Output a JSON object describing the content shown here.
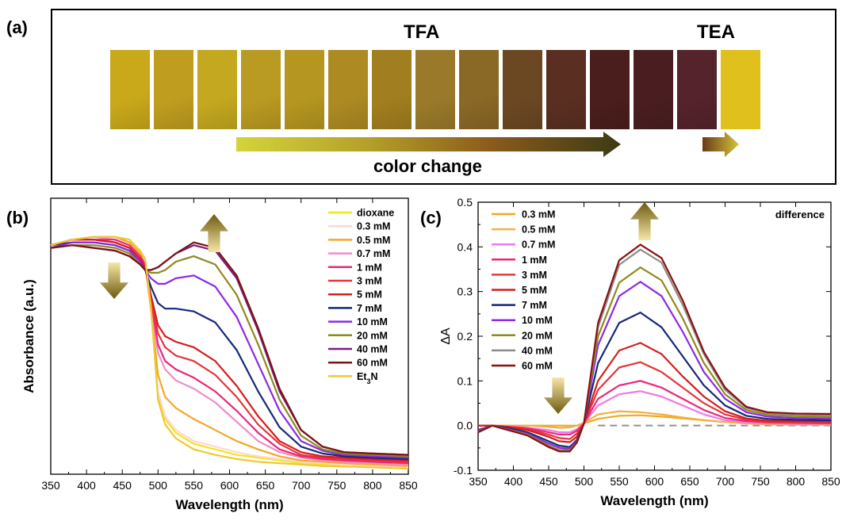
{
  "panel_labels": {
    "a": "(a)",
    "b": "(b)",
    "c": "(c)"
  },
  "panel_a": {
    "tfa_label": "TFA",
    "tea_label": "TEA",
    "caption": "color change",
    "tfa_swatch_colors": [
      "#c9a81a",
      "#bf9d1f",
      "#c4a81f",
      "#b99a22",
      "#b59620",
      "#ad8a22",
      "#a17e1f",
      "#9a7a2a",
      "#8a6826",
      "#6b4822",
      "#5a2f22",
      "#4a1e1c",
      "#4a1e20",
      "#55232b"
    ],
    "tea_swatch_color": "#e0c01c",
    "arrow_gradient": [
      "#d4d43a",
      "#b5a22a",
      "#8a5a1c",
      "#3c3a14"
    ],
    "tea_arrow_gradient": [
      "#6a3a18",
      "#d4c43a"
    ]
  },
  "chart_data": [
    {
      "id": "b",
      "type": "line",
      "title": "",
      "xlabel": "Wavelength (nm)",
      "ylabel": "Absorbance (a.u.)",
      "xlim": [
        350,
        850
      ],
      "xticks": [
        350,
        400,
        450,
        500,
        550,
        600,
        650,
        700,
        750,
        800,
        850
      ],
      "ylim": [
        0,
        1
      ],
      "yticks_shown": false,
      "legend_position": "top-right",
      "x": [
        350,
        380,
        410,
        440,
        460,
        475,
        482,
        490,
        500,
        510,
        525,
        550,
        580,
        610,
        640,
        670,
        700,
        730,
        760,
        800,
        850
      ],
      "series": [
        {
          "name": "dioxane",
          "color": "#f0e61e",
          "values": [
            0.83,
            0.85,
            0.86,
            0.86,
            0.84,
            0.8,
            0.77,
            0.6,
            0.29,
            0.2,
            0.15,
            0.11,
            0.09,
            0.07,
            0.06,
            0.05,
            0.04,
            0.035,
            0.03,
            0.025,
            0.02
          ]
        },
        {
          "name": "0.3 mM",
          "color": "#ffd8d0",
          "values": [
            0.83,
            0.85,
            0.86,
            0.86,
            0.84,
            0.8,
            0.77,
            0.6,
            0.3,
            0.21,
            0.16,
            0.12,
            0.1,
            0.08,
            0.065,
            0.055,
            0.045,
            0.04,
            0.035,
            0.03,
            0.025
          ]
        },
        {
          "name": "0.5 mM",
          "color": "#f0a828",
          "values": [
            0.83,
            0.85,
            0.86,
            0.86,
            0.84,
            0.8,
            0.76,
            0.6,
            0.36,
            0.28,
            0.24,
            0.2,
            0.16,
            0.12,
            0.09,
            0.065,
            0.05,
            0.045,
            0.04,
            0.035,
            0.03
          ]
        },
        {
          "name": "0.7 mM",
          "color": "#f08cc8",
          "values": [
            0.83,
            0.85,
            0.86,
            0.85,
            0.83,
            0.79,
            0.76,
            0.62,
            0.44,
            0.38,
            0.34,
            0.31,
            0.26,
            0.19,
            0.12,
            0.08,
            0.06,
            0.05,
            0.045,
            0.04,
            0.035
          ]
        },
        {
          "name": "1 mM",
          "color": "#e8287a",
          "values": [
            0.83,
            0.85,
            0.85,
            0.85,
            0.83,
            0.79,
            0.76,
            0.63,
            0.47,
            0.41,
            0.38,
            0.35,
            0.3,
            0.23,
            0.15,
            0.09,
            0.065,
            0.055,
            0.05,
            0.045,
            0.04
          ]
        },
        {
          "name": "3 mM",
          "color": "#e8343a",
          "values": [
            0.83,
            0.85,
            0.85,
            0.84,
            0.82,
            0.78,
            0.75,
            0.64,
            0.51,
            0.46,
            0.43,
            0.41,
            0.36,
            0.28,
            0.18,
            0.11,
            0.07,
            0.06,
            0.055,
            0.05,
            0.045
          ]
        },
        {
          "name": "5 mM",
          "color": "#d41e1e",
          "values": [
            0.83,
            0.85,
            0.85,
            0.84,
            0.82,
            0.78,
            0.75,
            0.65,
            0.54,
            0.5,
            0.48,
            0.46,
            0.41,
            0.32,
            0.21,
            0.12,
            0.08,
            0.065,
            0.06,
            0.055,
            0.05
          ]
        },
        {
          "name": "7 mM",
          "color": "#14287a",
          "values": [
            0.83,
            0.84,
            0.84,
            0.83,
            0.81,
            0.77,
            0.74,
            0.68,
            0.62,
            0.6,
            0.6,
            0.59,
            0.55,
            0.45,
            0.3,
            0.17,
            0.1,
            0.075,
            0.065,
            0.06,
            0.055
          ]
        },
        {
          "name": "10 mM",
          "color": "#8c28e6",
          "values": [
            0.82,
            0.84,
            0.84,
            0.83,
            0.81,
            0.77,
            0.74,
            0.71,
            0.69,
            0.69,
            0.71,
            0.72,
            0.68,
            0.57,
            0.4,
            0.23,
            0.12,
            0.085,
            0.07,
            0.065,
            0.06
          ]
        },
        {
          "name": "20 mM",
          "color": "#8c8a1e",
          "values": [
            0.82,
            0.83,
            0.83,
            0.82,
            0.8,
            0.76,
            0.74,
            0.73,
            0.73,
            0.74,
            0.77,
            0.79,
            0.76,
            0.65,
            0.47,
            0.27,
            0.14,
            0.09,
            0.075,
            0.07,
            0.065
          ]
        },
        {
          "name": "40 mM",
          "color": "#7a1e82",
          "values": [
            0.82,
            0.83,
            0.82,
            0.81,
            0.79,
            0.76,
            0.74,
            0.74,
            0.75,
            0.77,
            0.8,
            0.83,
            0.81,
            0.71,
            0.52,
            0.3,
            0.16,
            0.1,
            0.08,
            0.075,
            0.07
          ]
        },
        {
          "name": "60 mM",
          "color": "#7a1414",
          "values": [
            0.82,
            0.83,
            0.82,
            0.81,
            0.79,
            0.76,
            0.74,
            0.74,
            0.75,
            0.77,
            0.8,
            0.84,
            0.82,
            0.72,
            0.53,
            0.31,
            0.16,
            0.1,
            0.08,
            0.075,
            0.07
          ]
        },
        {
          "name": "Et3N",
          "color": "#f0c832",
          "values": [
            0.83,
            0.85,
            0.86,
            0.86,
            0.85,
            0.81,
            0.78,
            0.61,
            0.27,
            0.18,
            0.13,
            0.09,
            0.07,
            0.055,
            0.045,
            0.04,
            0.035,
            0.03,
            0.028,
            0.025,
            0.02
          ]
        }
      ],
      "legend_labels": {
        "dioxane": "dioxane",
        "0.3 mM": "0.3 mM",
        "0.5 mM": "0.5 mM",
        "0.7 mM": "0.7 mM",
        "1 mM": "1 mM",
        "3 mM": "3 mM",
        "5 mM": "5 mM",
        "7 mM": "7 mM",
        "10 mM": "10 mM",
        "20 mM": "20 mM",
        "40 mM": "40 mM",
        "60 mM": "60 mM",
        "Et3N_base": "Et",
        "Et3N_sub": "3",
        "Et3N_tail": "N"
      }
    },
    {
      "id": "c",
      "type": "line",
      "title": "difference",
      "xlabel": "Wavelength (nm)",
      "ylabel": "ΔA",
      "xlim": [
        350,
        850
      ],
      "ylim": [
        -0.1,
        0.5
      ],
      "xticks": [
        350,
        400,
        450,
        500,
        550,
        600,
        650,
        700,
        750,
        800,
        850
      ],
      "yticks": [
        -0.1,
        0.0,
        0.1,
        0.2,
        0.3,
        0.4,
        0.5
      ],
      "ytick_labels": [
        "-0.1",
        "0.0",
        "0.1",
        "0.2",
        "0.3",
        "0.4",
        "0.5"
      ],
      "legend_position": "top-left",
      "baseline": {
        "y": 0.0,
        "x_from": 520,
        "x_to": 850,
        "style": "dashed",
        "color": "#909090"
      },
      "x": [
        350,
        370,
        390,
        420,
        450,
        465,
        480,
        490,
        500,
        520,
        550,
        580,
        610,
        640,
        670,
        700,
        730,
        760,
        800,
        850
      ],
      "series": [
        {
          "name": "0.3 mM",
          "color": "#f0a828",
          "values": [
            0.0,
            0.0,
            0.0,
            0.0,
            0.0,
            0.0,
            0.0,
            0.0,
            0.005,
            0.015,
            0.022,
            0.023,
            0.02,
            0.016,
            0.012,
            0.008,
            0.005,
            0.003,
            0.002,
            0.002
          ]
        },
        {
          "name": "0.5 mM",
          "color": "#f0b040",
          "values": [
            0.0,
            0.0,
            0.0,
            0.0,
            -0.003,
            -0.005,
            -0.004,
            0.0,
            0.006,
            0.025,
            0.032,
            0.03,
            0.025,
            0.018,
            0.012,
            0.008,
            0.005,
            0.003,
            0.002,
            0.002
          ]
        },
        {
          "name": "0.7 mM",
          "color": "#f078e8",
          "values": [
            0.0,
            0.0,
            -0.002,
            -0.005,
            -0.01,
            -0.015,
            -0.015,
            -0.008,
            0.005,
            0.045,
            0.07,
            0.077,
            0.065,
            0.045,
            0.025,
            0.012,
            0.007,
            0.005,
            0.004,
            0.004
          ]
        },
        {
          "name": "1 mM",
          "color": "#e8287a",
          "values": [
            0.0,
            0.0,
            -0.002,
            -0.006,
            -0.015,
            -0.02,
            -0.02,
            -0.012,
            0.005,
            0.06,
            0.09,
            0.1,
            0.085,
            0.06,
            0.035,
            0.017,
            0.01,
            0.007,
            0.006,
            0.005
          ]
        },
        {
          "name": "3 mM",
          "color": "#e8343a",
          "values": [
            0.0,
            0.0,
            -0.003,
            -0.008,
            -0.02,
            -0.028,
            -0.03,
            -0.018,
            0.005,
            0.08,
            0.13,
            0.142,
            0.12,
            0.085,
            0.05,
            0.025,
            0.013,
            0.009,
            0.008,
            0.007
          ]
        },
        {
          "name": "5 mM",
          "color": "#d41e1e",
          "values": [
            0.0,
            0.0,
            -0.003,
            -0.01,
            -0.025,
            -0.035,
            -0.037,
            -0.025,
            0.005,
            0.1,
            0.168,
            0.185,
            0.16,
            0.11,
            0.065,
            0.032,
            0.016,
            0.011,
            0.01,
            0.009
          ]
        },
        {
          "name": "7 mM",
          "color": "#14287a",
          "values": [
            -0.01,
            0.0,
            -0.005,
            -0.015,
            -0.035,
            -0.045,
            -0.048,
            -0.032,
            0.005,
            0.14,
            0.23,
            0.253,
            0.22,
            0.155,
            0.09,
            0.045,
            0.022,
            0.015,
            0.013,
            0.012
          ]
        },
        {
          "name": "10 mM",
          "color": "#8c28e6",
          "values": [
            -0.012,
            0.0,
            -0.007,
            -0.018,
            -0.04,
            -0.05,
            -0.052,
            -0.035,
            0.005,
            0.18,
            0.29,
            0.322,
            0.29,
            0.21,
            0.12,
            0.06,
            0.03,
            0.02,
            0.017,
            0.016
          ]
        },
        {
          "name": "20 mM",
          "color": "#8c8a1e",
          "values": [
            -0.014,
            0.0,
            -0.008,
            -0.02,
            -0.045,
            -0.055,
            -0.055,
            -0.037,
            0.005,
            0.2,
            0.32,
            0.354,
            0.325,
            0.24,
            0.14,
            0.07,
            0.035,
            0.024,
            0.021,
            0.02
          ]
        },
        {
          "name": "40 mM",
          "color": "#8c8c8c",
          "values": [
            -0.015,
            0.0,
            -0.009,
            -0.022,
            -0.048,
            -0.057,
            -0.057,
            -0.038,
            0.005,
            0.22,
            0.36,
            0.394,
            0.365,
            0.27,
            0.16,
            0.08,
            0.04,
            0.028,
            0.025,
            0.024
          ]
        },
        {
          "name": "60 mM",
          "color": "#8c0f0f",
          "values": [
            -0.015,
            0.0,
            -0.009,
            -0.022,
            -0.048,
            -0.058,
            -0.058,
            -0.038,
            0.005,
            0.23,
            0.37,
            0.405,
            0.375,
            0.28,
            0.165,
            0.085,
            0.042,
            0.03,
            0.027,
            0.026
          ]
        }
      ]
    }
  ]
}
